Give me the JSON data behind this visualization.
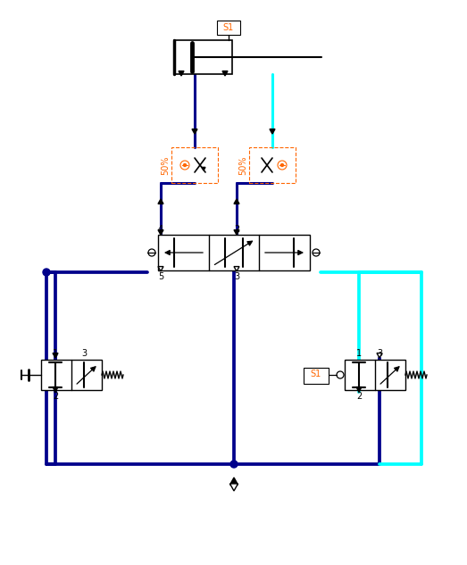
{
  "bg_color": "#ffffff",
  "dark_blue": "#00008B",
  "cyan": "#00FFFF",
  "black": "#000000",
  "orange": "#FF6600",
  "lw_main": 2.2,
  "lw_thin": 1.0,
  "fig_w": 5.23,
  "fig_h": 6.33,
  "dpi": 100
}
